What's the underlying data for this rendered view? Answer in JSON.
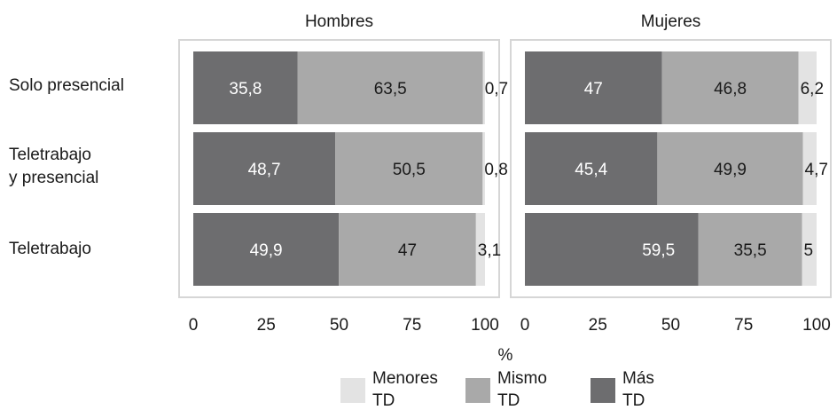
{
  "chart_data": {
    "type": "bar",
    "orientation": "horizontal",
    "stacked": true,
    "categories": [
      "Solo presencial",
      "Teletrabajo\ny presencial",
      "Teletrabajo"
    ],
    "panels": [
      {
        "title": "Hombres",
        "series": [
          {
            "name": "Más TD",
            "values": [
              35.8,
              48.7,
              49.9
            ],
            "labels": [
              "35,8",
              "48,7",
              "49,9"
            ]
          },
          {
            "name": "Mismo TD",
            "values": [
              63.5,
              50.5,
              47
            ],
            "labels": [
              "63,5",
              "50,5",
              "47"
            ]
          },
          {
            "name": "Menores TD",
            "values": [
              0.7,
              0.8,
              3.1
            ],
            "labels": [
              "0,7",
              "0,8",
              "3,1"
            ]
          }
        ]
      },
      {
        "title": "Mujeres",
        "series": [
          {
            "name": "Más TD",
            "values": [
              47,
              45.4,
              59.5
            ],
            "labels": [
              "47",
              "45,4",
              "59,5"
            ]
          },
          {
            "name": "Mismo TD",
            "values": [
              46.8,
              49.9,
              35.5
            ],
            "labels": [
              "46,8",
              "49,9",
              "35,5"
            ]
          },
          {
            "name": "Menores TD",
            "values": [
              6.2,
              4.7,
              5
            ],
            "labels": [
              "6,2",
              "4,7",
              "5"
            ]
          }
        ]
      }
    ],
    "xlabel": "%",
    "xlim": [
      0,
      100
    ],
    "xticks": [
      0,
      25,
      50,
      75,
      100
    ],
    "legend": {
      "position": "bottom",
      "items": [
        {
          "label": "Menores\nTD",
          "color": "#e3e3e3"
        },
        {
          "label": "Mismo\nTD",
          "color": "#a9a9a9"
        },
        {
          "label": "Más\nTD",
          "color": "#6d6d6f"
        }
      ]
    },
    "colors": {
      "Más TD": "#6d6d6f",
      "Mismo TD": "#a9a9a9",
      "Menores TD": "#e3e3e3",
      "label_dark": "#ffffff",
      "label_light": "#1a1a1a",
      "panel_border": "#d6d6d6"
    }
  }
}
